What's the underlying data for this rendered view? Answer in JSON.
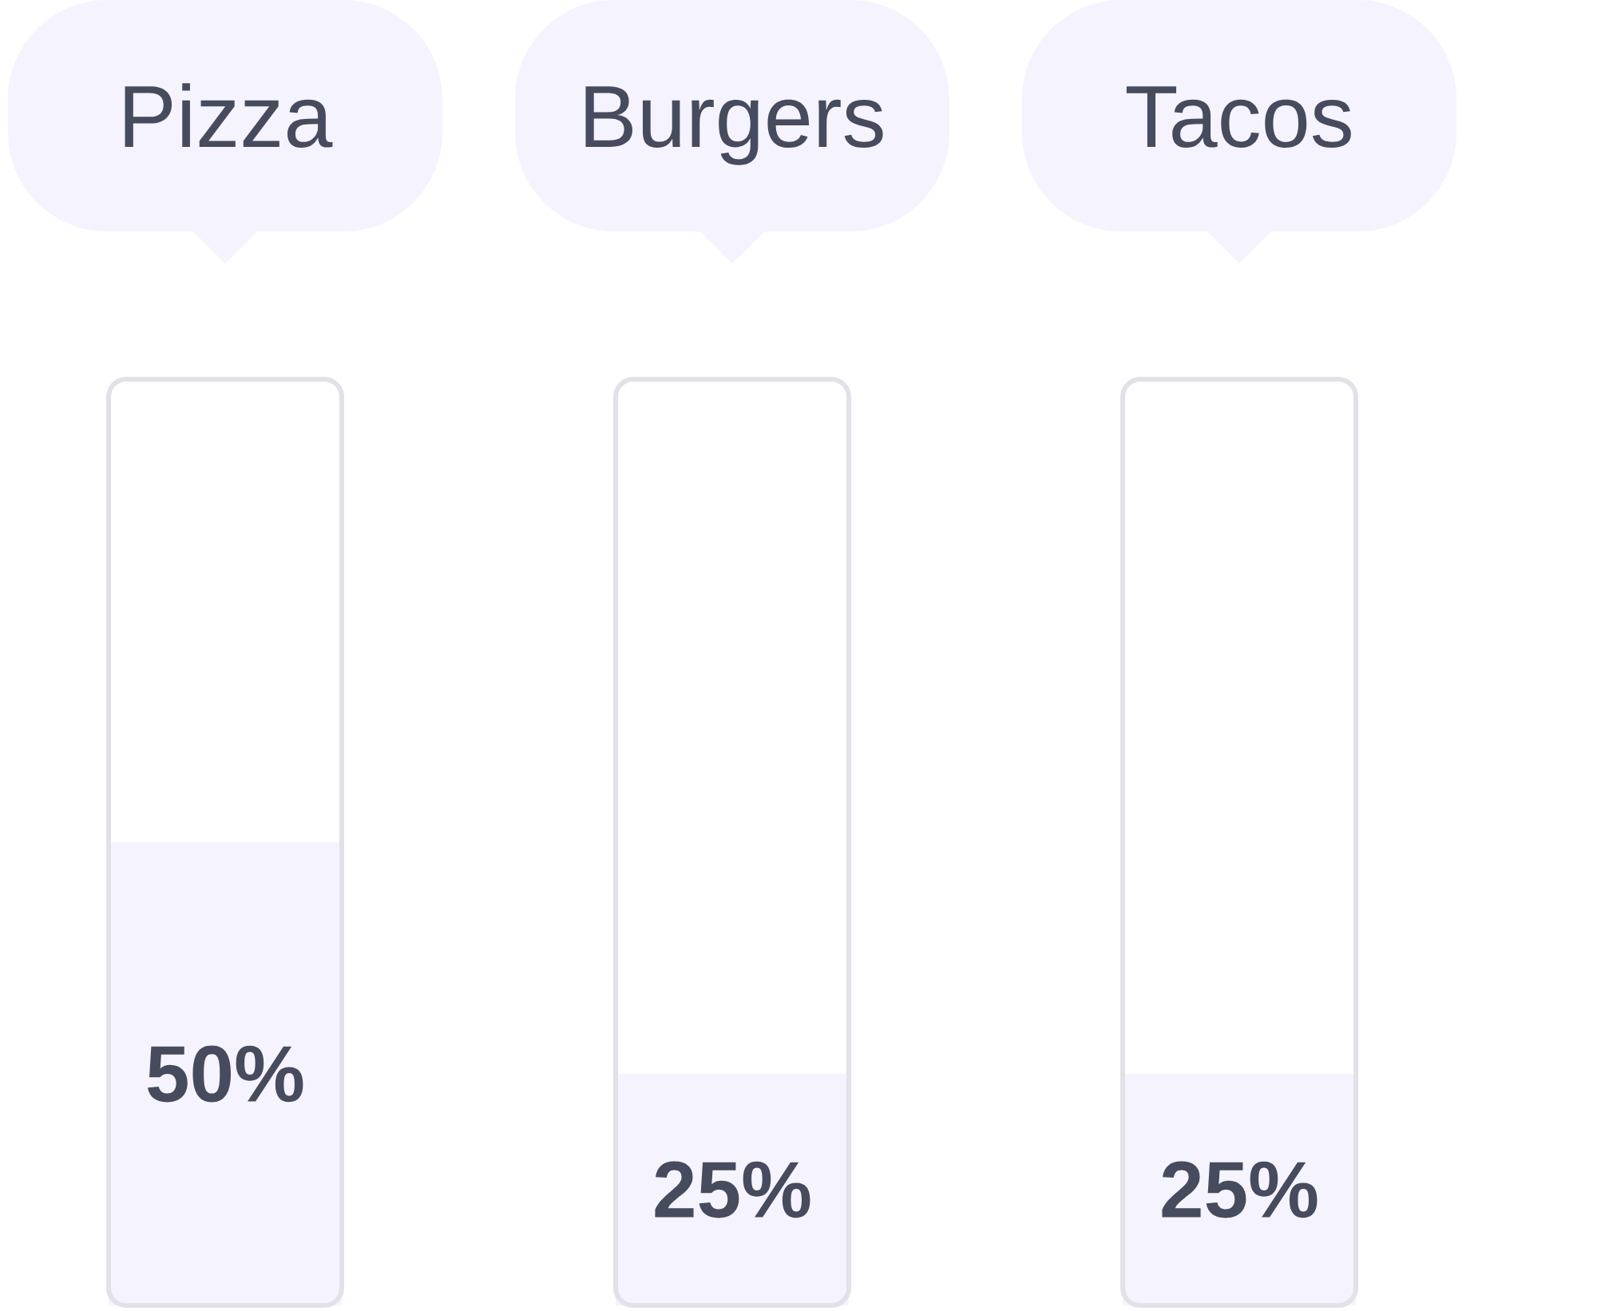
{
  "chart_data": {
    "type": "bar",
    "categories": [
      "Pizza",
      "Burgers",
      "Tacos"
    ],
    "values": [
      50,
      25,
      25
    ],
    "value_labels": [
      "50%",
      "25%",
      "25%"
    ],
    "color": "#f5f4fe",
    "ylim": [
      0,
      100
    ],
    "tick_labels": "x"
  }
}
